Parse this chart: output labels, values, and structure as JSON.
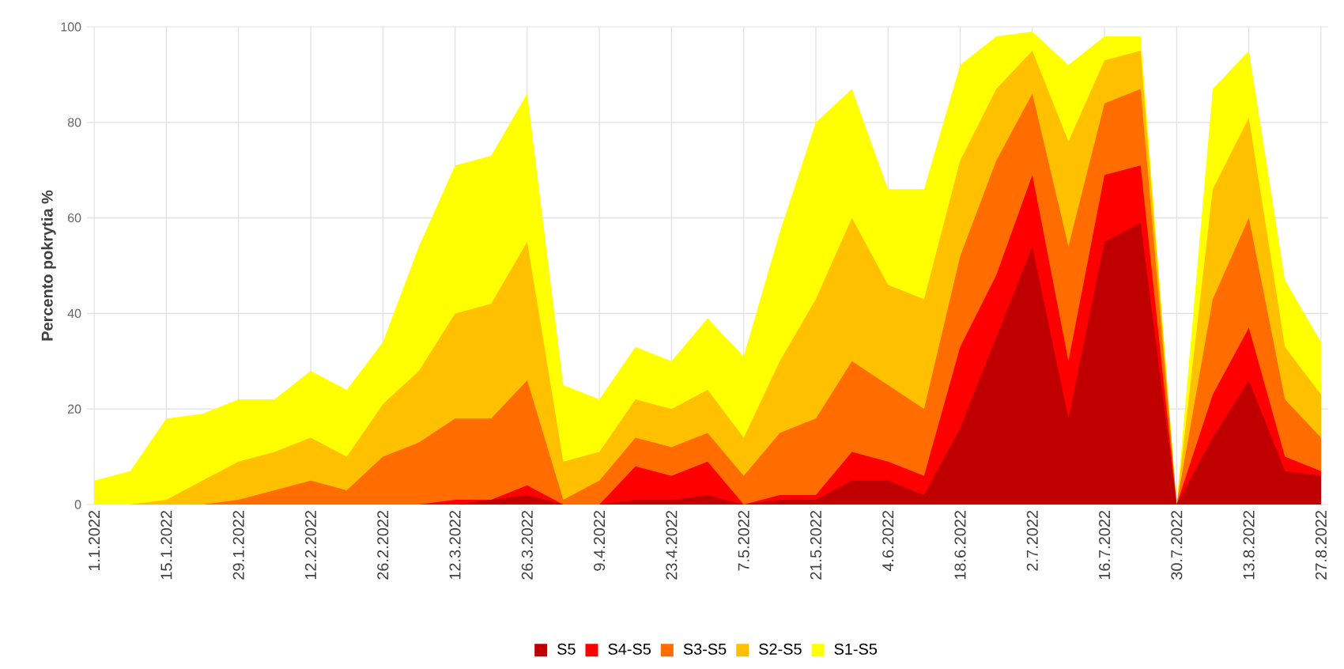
{
  "chart_data": {
    "type": "area",
    "ylabel": "Percento pokrytia %",
    "categories": [
      "1.1.2022",
      null,
      "15.1.2022",
      null,
      "29.1.2022",
      null,
      "12.2.2022",
      null,
      "26.2.2022",
      null,
      "12.3.2022",
      null,
      "26.3.2022",
      null,
      "9.4.2022",
      null,
      "23.4.2022",
      null,
      "7.5.2022",
      null,
      "21.5.2022",
      null,
      "4.6.2022",
      null,
      "18.6.2022",
      null,
      "2.7.2022",
      null,
      "16.7.2022",
      null,
      "30.7.2022",
      null,
      "13.8.2022",
      null,
      "27.8.2022"
    ],
    "ylim": [
      0,
      100
    ],
    "yticks": [
      0,
      20,
      40,
      60,
      80,
      100
    ],
    "grid": true,
    "legend": "bottom",
    "series": [
      {
        "name": "S5",
        "color": "#c00000",
        "values": [
          0,
          0,
          0,
          0,
          0,
          0,
          0,
          0,
          0,
          0,
          0,
          1,
          2,
          0,
          0,
          1,
          1,
          2,
          0,
          1,
          1,
          5,
          5,
          2,
          16,
          35,
          54,
          18,
          55,
          59,
          0,
          14,
          26,
          7,
          6
        ]
      },
      {
        "name": "S4-S5",
        "color": "#ff0000",
        "values": [
          0,
          0,
          0,
          0,
          0,
          0,
          0,
          0,
          0,
          0,
          1,
          1,
          4,
          0,
          0,
          8,
          6,
          9,
          0,
          2,
          2,
          11,
          9,
          6,
          33,
          48,
          69,
          30,
          69,
          71,
          0,
          23,
          37,
          10,
          7
        ]
      },
      {
        "name": "S3-S5",
        "color": "#ff6d00",
        "values": [
          0,
          0,
          0,
          0,
          1,
          3,
          5,
          3,
          10,
          13,
          18,
          18,
          26,
          1,
          5,
          14,
          12,
          15,
          6,
          15,
          18,
          30,
          25,
          20,
          52,
          72,
          86,
          54,
          84,
          87,
          0,
          43,
          60,
          22,
          14
        ]
      },
      {
        "name": "S2-S5",
        "color": "#ffc000",
        "values": [
          0,
          0,
          1,
          5,
          9,
          11,
          14,
          10,
          21,
          28,
          40,
          42,
          55,
          9,
          11,
          22,
          20,
          24,
          14,
          30,
          43,
          60,
          46,
          43,
          72,
          87,
          95,
          76,
          93,
          95,
          0,
          66,
          81,
          33,
          23
        ]
      },
      {
        "name": "S1-S5",
        "color": "#ffff00",
        "values": [
          5,
          7,
          18,
          19,
          22,
          22,
          28,
          24,
          34,
          54,
          71,
          73,
          86,
          25,
          22,
          33,
          30,
          39,
          31,
          57,
          80,
          87,
          66,
          66,
          92,
          98,
          99,
          92,
          98,
          98,
          0,
          87,
          95,
          47,
          34
        ]
      }
    ]
  }
}
